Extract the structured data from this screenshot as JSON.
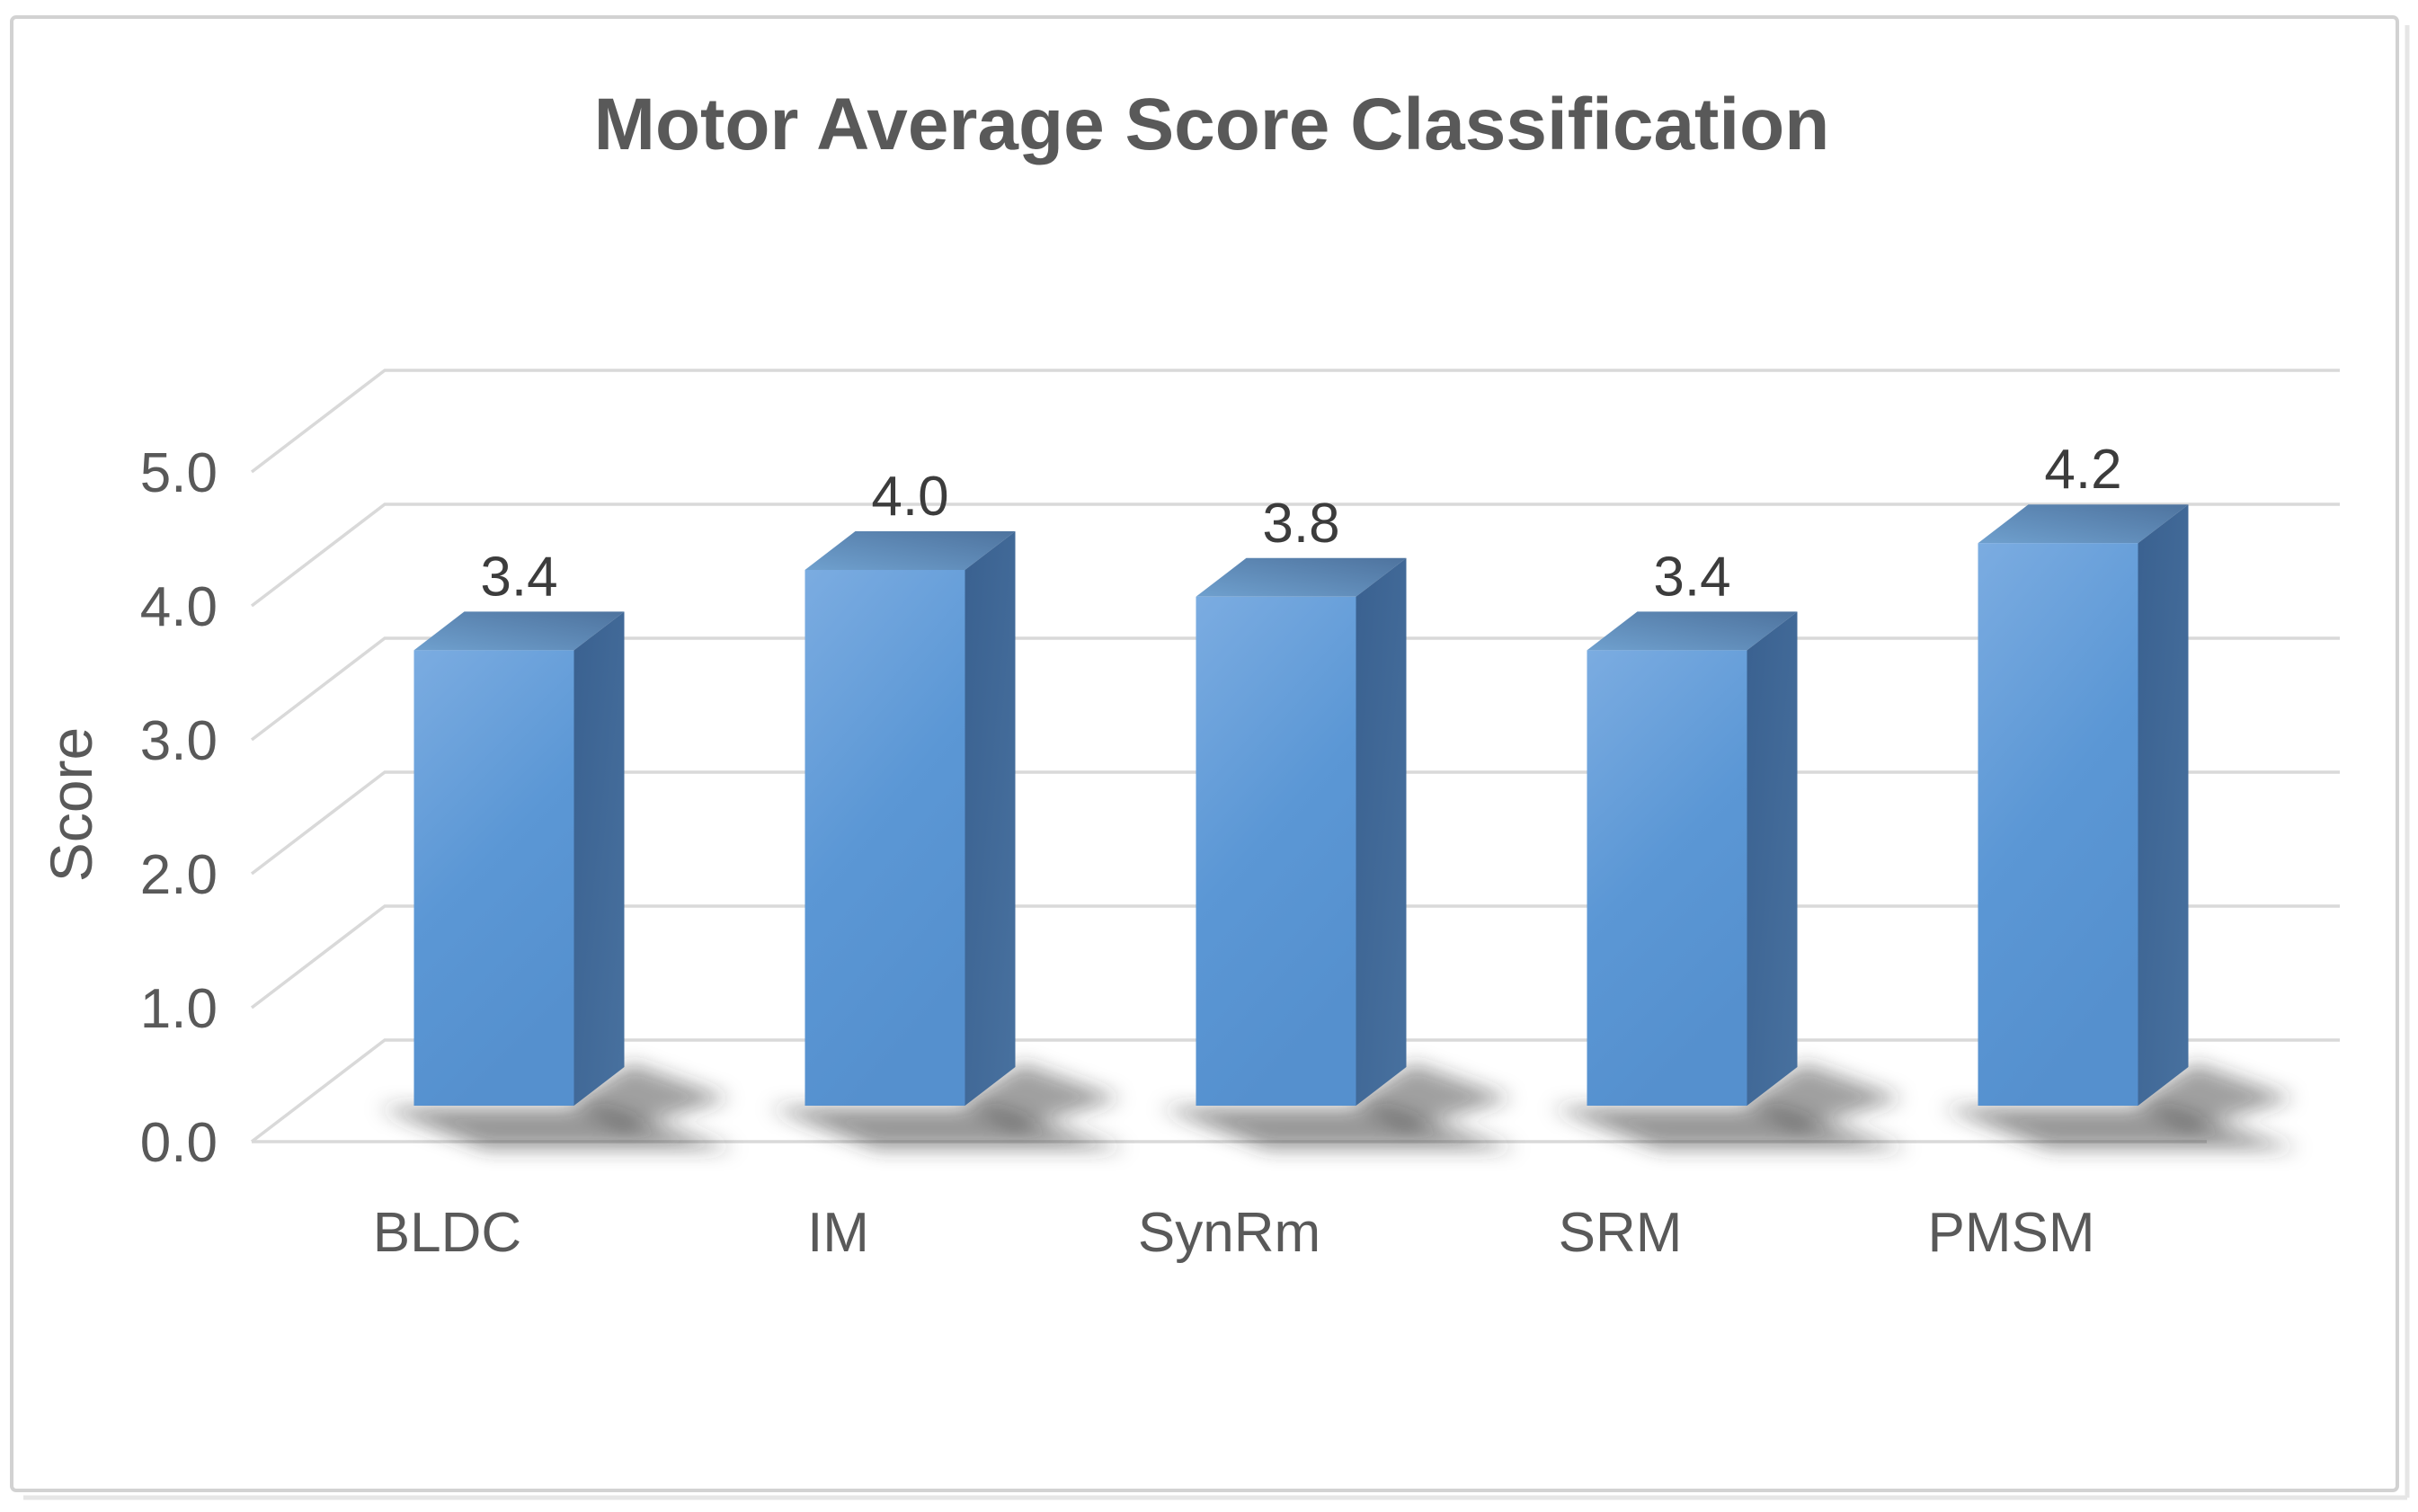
{
  "chart_data": {
    "type": "bar",
    "style": "3d-column",
    "title": "Motor Average Score Classification",
    "ylabel": "Score",
    "xlabel": "",
    "categories": [
      "BLDC",
      "IM",
      "SynRm",
      "SRM",
      "PMSM"
    ],
    "values": [
      3.4,
      4.0,
      3.8,
      3.4,
      4.2
    ],
    "data_labels": [
      "3.4",
      "4.0",
      "3.8",
      "3.4",
      "4.2"
    ],
    "yticks": [
      "0.0",
      "1.0",
      "2.0",
      "3.0",
      "4.0",
      "5.0"
    ],
    "ylim": [
      0,
      5
    ],
    "grid": true,
    "legend": "none",
    "colors": {
      "bar_front": "#5B97D5",
      "bar_front_light": "#7BACE1",
      "bar_front_dark": "#5590CE",
      "bar_side_dark": "#3A6190",
      "bar_side": "#48719F",
      "bar_top_light": "#6FA0CE",
      "bar_top_dark": "#4E739E",
      "gridline": "#D9D9D9",
      "axis_label": "#595959",
      "value_label": "#3C3C3C",
      "title": "#595959",
      "frame_border": "#D2D2D2",
      "shadow": "#2F2F2F"
    }
  }
}
